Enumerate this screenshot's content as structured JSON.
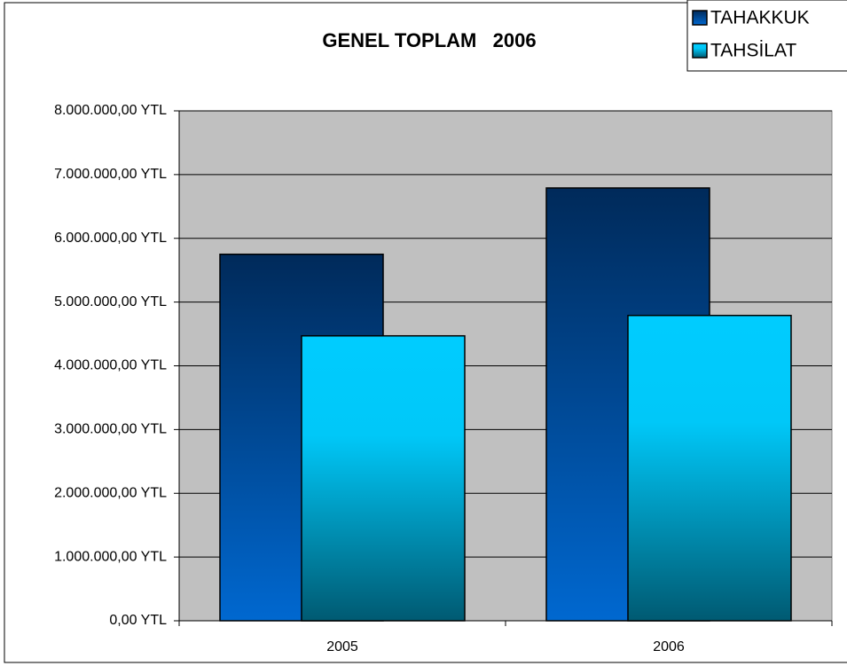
{
  "chart_data": {
    "type": "bar",
    "title": "GENEL TOPLAM   2006",
    "categories": [
      "2005",
      "2006"
    ],
    "series": [
      {
        "name": "TAHAKKUK",
        "color": "#0a4a96",
        "values": [
          5750000,
          6790000
        ]
      },
      {
        "name": "TAHSİLAT",
        "color": "#00c8f8",
        "values": [
          4470000,
          4790000
        ]
      }
    ],
    "ylim": [
      0,
      8000000
    ],
    "yticks": [
      {
        "value": 0,
        "label": "0,00 YTL"
      },
      {
        "value": 1000000,
        "label": "1.000.000,00 YTL"
      },
      {
        "value": 2000000,
        "label": "2.000.000,00 YTL"
      },
      {
        "value": 3000000,
        "label": "3.000.000,00 YTL"
      },
      {
        "value": 4000000,
        "label": "4.000.000,00 YTL"
      },
      {
        "value": 5000000,
        "label": "5.000.000,00 YTL"
      },
      {
        "value": 6000000,
        "label": "6.000.000,00 YTL"
      },
      {
        "value": 7000000,
        "label": "7.000.000,00 YTL"
      },
      {
        "value": 8000000,
        "label": "8.000.000,00 YTL"
      }
    ],
    "grid": true,
    "legend": "top-right"
  }
}
